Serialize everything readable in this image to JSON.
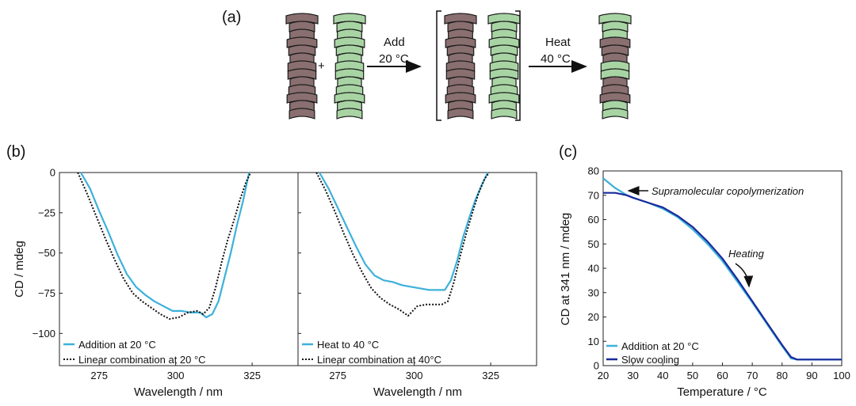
{
  "panel_labels": {
    "a": "(a)",
    "b": "(b)",
    "c": "(c)"
  },
  "schematic": {
    "plus": "+",
    "step1": {
      "line1": "Add",
      "line2": "20 °C"
    },
    "step2": {
      "line1": "Heat",
      "line2": "40 °C"
    },
    "colors": {
      "mauve": "#8a6f70",
      "green": "#a8d4a4"
    }
  },
  "colors": {
    "cyan": "#3cb1da",
    "black": "#111111",
    "navy": "#1a2a9c"
  },
  "chart_data": [
    {
      "type": "line",
      "panel": "b-left",
      "xlabel": "Wavelength / nm",
      "ylabel": "CD / mdeg",
      "xlim": [
        262,
        340
      ],
      "ylim": [
        -120,
        0
      ],
      "xticks": [
        275,
        300,
        325
      ],
      "yticks": [
        0,
        -25,
        -50,
        -75,
        -100
      ],
      "legend_position": "bottom-left",
      "series": [
        {
          "name": "Addition at 20 °C",
          "style": "solid",
          "color": "#3cb1da",
          "x": [
            269,
            272,
            275,
            278,
            281,
            284,
            287,
            290,
            293,
            296,
            299,
            302,
            305,
            308,
            310,
            312,
            314,
            316,
            318,
            320,
            322,
            324
          ],
          "y": [
            0,
            -10,
            -24,
            -37,
            -51,
            -63,
            -71,
            -76,
            -80,
            -83,
            -86,
            -86,
            -87,
            -87,
            -90,
            -88,
            -80,
            -65,
            -50,
            -33,
            -18,
            0
          ]
        },
        {
          "name": "Linear combination at 20 °C",
          "style": "dotted",
          "color": "#111111",
          "x": [
            268,
            271,
            274,
            277,
            280,
            283,
            286,
            289,
            292,
            295,
            298,
            301,
            304,
            307,
            309,
            311,
            313,
            315,
            317,
            319,
            321,
            323,
            324.5
          ],
          "y": [
            0,
            -13,
            -27,
            -41,
            -54,
            -66,
            -75,
            -80,
            -84,
            -88,
            -91,
            -90,
            -87,
            -86,
            -88,
            -84,
            -72,
            -56,
            -42,
            -30,
            -17,
            -6,
            0
          ]
        }
      ]
    },
    {
      "type": "line",
      "panel": "b-right",
      "xlabel": "Wavelength / nm",
      "ylabel": "",
      "xlim": [
        262,
        340
      ],
      "ylim": [
        -120,
        0
      ],
      "xticks": [
        275,
        300,
        325
      ],
      "yticks": [
        0,
        -25,
        -50,
        -75,
        -100
      ],
      "legend_position": "bottom-left",
      "series": [
        {
          "name": "Heat to 40 °C",
          "style": "solid",
          "color": "#3cb1da",
          "x": [
            269,
            272,
            275,
            278,
            281,
            284,
            287,
            290,
            293,
            296,
            299,
            302,
            305,
            308,
            310,
            312,
            314,
            316,
            318,
            320,
            322,
            324
          ],
          "y": [
            0,
            -10,
            -22,
            -34,
            -46,
            -57,
            -64,
            -67,
            -68,
            -70,
            -71,
            -72,
            -73,
            -73,
            -73,
            -67,
            -55,
            -40,
            -28,
            -17,
            -8,
            0
          ]
        },
        {
          "name": "Linear combination at 40°C",
          "style": "dotted",
          "color": "#111111",
          "x": [
            268,
            271,
            274,
            277,
            280,
            283,
            286,
            289,
            292,
            295,
            298,
            301,
            304,
            307,
            309,
            311,
            313,
            315,
            317,
            319,
            321,
            323,
            324.5
          ],
          "y": [
            0,
            -11,
            -24,
            -38,
            -51,
            -62,
            -72,
            -78,
            -82,
            -85,
            -89,
            -83,
            -82,
            -82,
            -82,
            -80,
            -68,
            -52,
            -38,
            -25,
            -13,
            -4,
            0
          ]
        }
      ]
    },
    {
      "type": "line",
      "panel": "c",
      "xlabel": "Temperature / °C",
      "ylabel": "CD at 341 nm / mdeg",
      "xlim": [
        20,
        100
      ],
      "ylim": [
        0,
        80
      ],
      "xticks": [
        20,
        30,
        40,
        50,
        60,
        70,
        80,
        90,
        100
      ],
      "yticks": [
        0,
        10,
        20,
        30,
        40,
        50,
        60,
        70,
        80
      ],
      "legend_position": "bottom-left",
      "annotations": [
        {
          "text": "Supramolecular copolymerization",
          "x": 28,
          "y": 72
        },
        {
          "text": "Heating",
          "x": 66,
          "y": 44
        }
      ],
      "series": [
        {
          "name": "Addition at 20 °C",
          "style": "solid",
          "color": "#3cb1da",
          "x": [
            20,
            22,
            24,
            26,
            28,
            30,
            35,
            40,
            45,
            50,
            55,
            60,
            65,
            70,
            75,
            80,
            83,
            85,
            87,
            90,
            95,
            100
          ],
          "y": [
            77,
            75,
            73,
            71.5,
            70,
            69,
            67,
            64.5,
            61,
            56,
            50,
            43,
            34.5,
            26,
            17,
            8,
            3,
            2.5,
            2.5,
            2.5,
            2.5,
            2.5
          ]
        },
        {
          "name": "Slow cooling",
          "style": "solid",
          "color": "#1a2a9c",
          "x": [
            20,
            22,
            24,
            26,
            28,
            30,
            35,
            40,
            45,
            50,
            55,
            60,
            65,
            70,
            75,
            80,
            83,
            85,
            87,
            90,
            95,
            100
          ],
          "y": [
            71,
            71,
            71,
            70.5,
            70,
            69,
            67,
            65,
            61.5,
            57,
            51,
            44,
            35.5,
            26.5,
            17.5,
            8.5,
            3.5,
            2.5,
            2.5,
            2.5,
            2.5,
            2.5
          ]
        }
      ]
    }
  ]
}
